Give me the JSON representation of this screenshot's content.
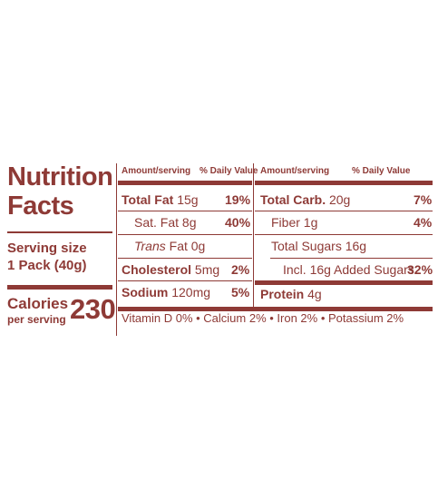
{
  "brand_color": "#8e3a36",
  "title": {
    "line1": "Nutrition",
    "line2": "Facts"
  },
  "serving": {
    "line1": "Serving size",
    "line2": "1 Pack (40g)"
  },
  "calories": {
    "label": "Calories",
    "sub": "per serving",
    "value": "230"
  },
  "headers": {
    "amount_left": "Amount/serving",
    "dv_left": "% Daily Value",
    "amount_right": "Amount/serving",
    "dv_right": "% Daily Value"
  },
  "left_rows": [
    {
      "name": "Total Fat",
      "amount": "15g",
      "dv": "19%"
    },
    {
      "name": "Sat. Fat",
      "amount": "8g",
      "dv": "40%"
    },
    {
      "name": "Trans",
      "name2": "Fat",
      "amount": "0g",
      "dv": ""
    },
    {
      "name": "Cholesterol",
      "amount": "5mg",
      "dv": "2%"
    },
    {
      "name": "Sodium",
      "amount": "120mg",
      "dv": "5%"
    }
  ],
  "right_rows": [
    {
      "name": "Total Carb.",
      "amount": "20g",
      "dv": "7%"
    },
    {
      "name": "Fiber",
      "amount": "1g",
      "dv": "4%"
    },
    {
      "name": "Total Sugars",
      "amount": "16g",
      "dv": ""
    },
    {
      "name": "Incl. 16g Added Sugars",
      "amount": "",
      "dv": "32%"
    },
    {
      "name": "Protein",
      "amount": "4g",
      "dv": ""
    }
  ],
  "vitamins": "Vitamin D 0% • Calcium 2% • Iron 2% • Potassium 2%"
}
